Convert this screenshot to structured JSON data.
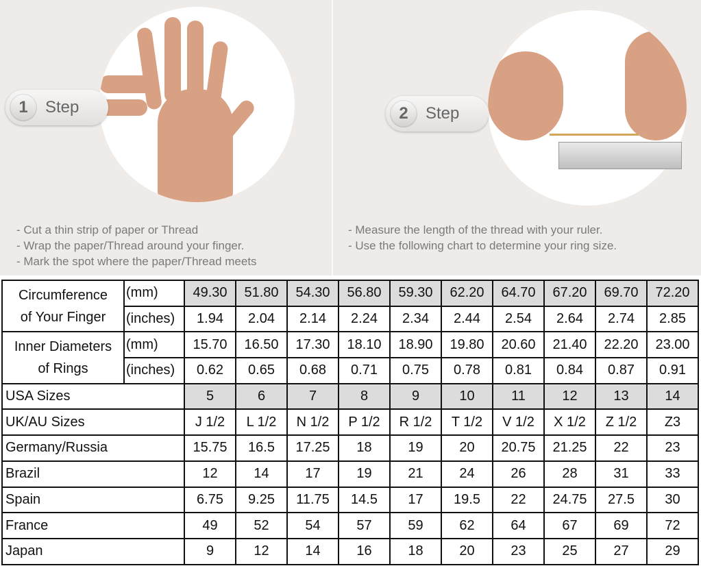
{
  "steps": [
    {
      "number": "1",
      "label": "Step",
      "instructions": [
        "- Cut a thin strip of paper or Thread",
        "- Wrap the paper/Thread around your finger.",
        "- Mark the spot where the paper/Thread meets"
      ]
    },
    {
      "number": "2",
      "label": "Step",
      "instructions": [
        "- Measure the length of the thread with your ruler.",
        "- Use the following chart to determine your ring size."
      ]
    }
  ],
  "table": {
    "circumference": {
      "label_line1": "Circumference",
      "label_line2": "of Your Finger",
      "unit_mm": "(mm)",
      "unit_in": "(inches)",
      "mm": [
        "49.30",
        "51.80",
        "54.30",
        "56.80",
        "59.30",
        "62.20",
        "64.70",
        "67.20",
        "69.70",
        "72.20"
      ],
      "inches": [
        "1.94",
        "2.04",
        "2.14",
        "2.24",
        "2.34",
        "2.44",
        "2.54",
        "2.64",
        "2.74",
        "2.85"
      ]
    },
    "inner_diameter": {
      "label_line1": "Inner Diameters",
      "label_line2": "of Rings",
      "unit_mm": "(mm)",
      "unit_in": "(inches)",
      "mm": [
        "15.70",
        "16.50",
        "17.30",
        "18.10",
        "18.90",
        "19.80",
        "20.60",
        "21.40",
        "22.20",
        "23.00"
      ],
      "inches": [
        "0.62",
        "0.65",
        "0.68",
        "0.71",
        "0.75",
        "0.78",
        "0.81",
        "0.84",
        "0.87",
        "0.91"
      ]
    },
    "rows": [
      {
        "label": "USA Sizes",
        "values": [
          "5",
          "6",
          "7",
          "8",
          "9",
          "10",
          "11",
          "12",
          "13",
          "14"
        ],
        "shaded": true
      },
      {
        "label": "UK/AU Sizes",
        "values": [
          "J 1/2",
          "L 1/2",
          "N 1/2",
          "P 1/2",
          "R 1/2",
          "T 1/2",
          "V 1/2",
          "X 1/2",
          "Z 1/2",
          "Z3"
        ]
      },
      {
        "label": "Germany/Russia",
        "values": [
          "15.75",
          "16.5",
          "17.25",
          "18",
          "19",
          "20",
          "20.75",
          "21.25",
          "22",
          "23"
        ]
      },
      {
        "label": "Brazil",
        "values": [
          "12",
          "14",
          "17",
          "19",
          "21",
          "24",
          "26",
          "28",
          "31",
          "33"
        ]
      },
      {
        "label": "Spain",
        "values": [
          "6.75",
          "9.25",
          "11.75",
          "14.5",
          "17",
          "19.5",
          "22",
          "24.75",
          "27.5",
          "30"
        ]
      },
      {
        "label": "France",
        "values": [
          "49",
          "52",
          "54",
          "57",
          "59",
          "62",
          "64",
          "67",
          "69",
          "72"
        ]
      },
      {
        "label": "Japan",
        "values": [
          "9",
          "12",
          "14",
          "16",
          "18",
          "20",
          "23",
          "25",
          "27",
          "29"
        ]
      }
    ]
  },
  "colors": {
    "background": "#eeebe8",
    "shaded_cell": "#dcdcdc",
    "border": "#111111"
  }
}
